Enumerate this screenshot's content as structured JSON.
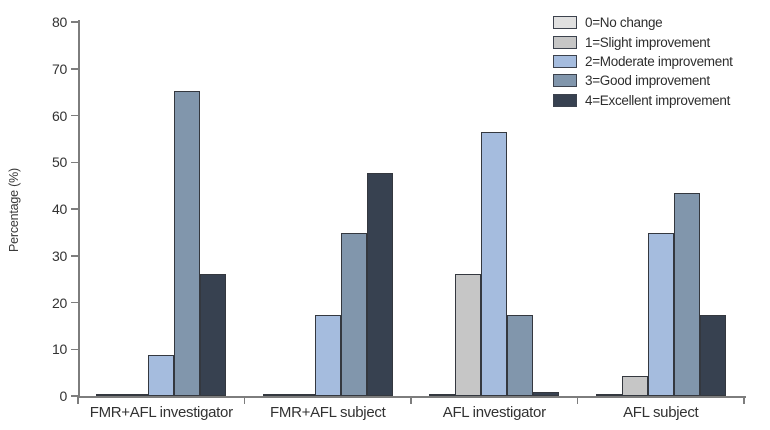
{
  "chart_data": {
    "type": "bar",
    "title": "",
    "ylabel": "Percentage (%)",
    "xlabel": "",
    "ylim": [
      0,
      80
    ],
    "yticks": [
      0,
      10,
      20,
      30,
      40,
      50,
      60,
      70,
      80
    ],
    "grid": false,
    "legend_position": "top-right",
    "categories": [
      "FMR+AFL investigator",
      "FMR+AFL subject",
      "AFL investigator",
      "AFL subject"
    ],
    "series": [
      {
        "name": "0=No change",
        "color": "#e0e0e0",
        "values": [
          0.5,
          0.5,
          0.5,
          0.5
        ]
      },
      {
        "name": "1=Slight improvement",
        "color": "#c6c6c6",
        "values": [
          0.5,
          0.5,
          26.1,
          4.3
        ]
      },
      {
        "name": "2=Moderate improvement",
        "color": "#a5bcde",
        "values": [
          8.7,
          17.4,
          56.5,
          34.8
        ]
      },
      {
        "name": "3=Good improvement",
        "color": "#8196ac",
        "values": [
          65.2,
          34.8,
          17.4,
          43.5
        ]
      },
      {
        "name": "4=Excellent improvement",
        "color": "#374150",
        "values": [
          26.1,
          47.8,
          0.8,
          17.4
        ]
      }
    ],
    "bar_border_color": "#34383f",
    "axis_color": "#7d7d7d",
    "text_color": "#323232"
  }
}
